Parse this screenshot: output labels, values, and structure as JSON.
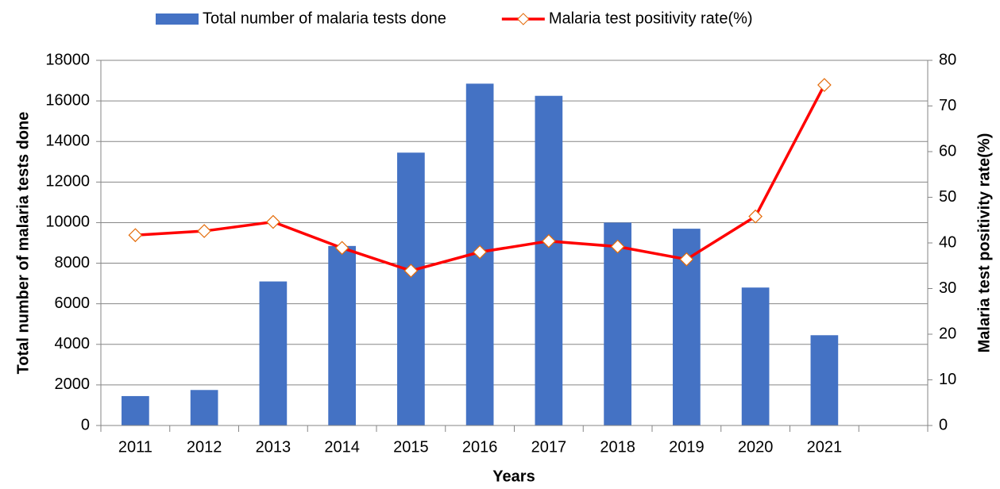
{
  "chart_data": {
    "type": "bar_line",
    "categories": [
      "2011",
      "2012",
      "2013",
      "2014",
      "2015",
      "2016",
      "2017",
      "2018",
      "2019",
      "2020",
      "2021",
      null
    ],
    "x_label": "Years",
    "y_label": "Total number of malaria tests done",
    "y2_label": "Malaria test positivity rate(%)",
    "ylim": [
      0,
      18000
    ],
    "yticks": [
      0,
      2000,
      4000,
      6000,
      8000,
      10000,
      12000,
      14000,
      16000,
      18000
    ],
    "y2lim": [
      0,
      80
    ],
    "y2ticks": [
      0,
      10,
      20,
      30,
      40,
      50,
      60,
      70,
      80
    ],
    "grid": true,
    "legend": "top",
    "series": [
      {
        "name": "Total number of malaria tests done",
        "type": "bar",
        "color": "#4472c4",
        "values": [
          1450,
          1750,
          7100,
          8850,
          13450,
          16850,
          16250,
          10000,
          9700,
          6800,
          4450,
          null
        ]
      },
      {
        "name": "Malaria test positivity rate(%)",
        "type": "line",
        "axis": "y2",
        "color": "#ff0000",
        "marker_color": "#e46c0a",
        "values": [
          41.7,
          42.6,
          44.6,
          38.9,
          33.9,
          38.0,
          40.4,
          39.2,
          36.4,
          45.8,
          74.6,
          null
        ]
      }
    ]
  }
}
